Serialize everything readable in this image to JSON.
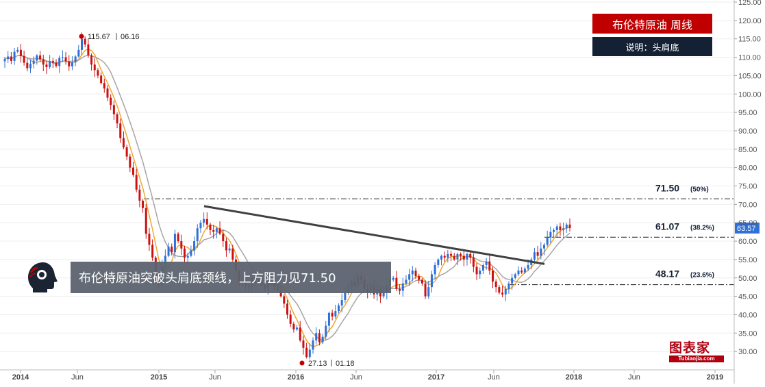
{
  "title": "布伦特原油 周线",
  "subtitle": "说明：头肩底",
  "banner_text": "布伦特原油突破头肩底颈线，上方阻力见71.50",
  "brand": {
    "name": "图表家",
    "site": "Tubiaojia.com"
  },
  "chart_data": {
    "type": "candlestick",
    "ylim": [
      25,
      125
    ],
    "y_ticks": [
      "30.00",
      "35.00",
      "40.00",
      "45.00",
      "50.00",
      "55.00",
      "60.00",
      "65.00",
      "70.00",
      "75.00",
      "80.00",
      "85.00",
      "90.00",
      "95.00",
      "100.00",
      "105.00",
      "110.00",
      "115.00",
      "120.00",
      "125.00"
    ],
    "x_labels": [
      "2014",
      "Jun",
      "2015",
      "Jun",
      "2016",
      "Jun",
      "2017",
      "Jun",
      "2018",
      "Jun",
      "2019"
    ],
    "last_price": "63.57",
    "high_annotation": {
      "price": "115.67",
      "date": "06.16"
    },
    "low_annotation": {
      "price": "27.13",
      "date": "01.18"
    },
    "fib_levels": [
      {
        "price": "71.50",
        "pct": "(50%)"
      },
      {
        "price": "61.07",
        "pct": "(38.2%)"
      },
      {
        "price": "48.17",
        "pct": "(23.6%)"
      }
    ],
    "neckline": {
      "start": 69.5,
      "end": 53.8
    },
    "closes": [
      109.5,
      110.2,
      109.0,
      111.5,
      112.0,
      110.3,
      108.5,
      107.0,
      108.2,
      109.1,
      110.5,
      109.4,
      108.0,
      107.3,
      109.0,
      108.5,
      107.6,
      109.8,
      110.0,
      108.9,
      107.5,
      108.6,
      110.2,
      112.0,
      115.0,
      113.5,
      110.5,
      108.0,
      106.5,
      105.0,
      103.0,
      101.5,
      99.0,
      97.0,
      94.5,
      92.0,
      88.0,
      85.5,
      83.0,
      80.0,
      78.0,
      74.0,
      71.0,
      69.0,
      62.0,
      59.0,
      55.5,
      50.0,
      48.0,
      53.0,
      56.0,
      58.5,
      57.0,
      62.0,
      60.0,
      58.0,
      55.5,
      56.0,
      57.5,
      60.0,
      63.5,
      65.0,
      66.0,
      64.5,
      63.0,
      62.5,
      63.5,
      62.0,
      60.0,
      57.5,
      58.0,
      55.0,
      52.0,
      49.0,
      49.5,
      48.0,
      47.5,
      50.0,
      48.5,
      49.0,
      48.0,
      47.2,
      48.5,
      49.0,
      47.5,
      46.5,
      45.0,
      43.0,
      40.0,
      37.5,
      36.0,
      36.5,
      33.0,
      31.0,
      28.5,
      30.5,
      33.0,
      35.0,
      32.5,
      34.0,
      37.0,
      40.5,
      39.5,
      41.0,
      42.5,
      44.0,
      46.0,
      47.5,
      49.0,
      48.0,
      50.5,
      49.5,
      47.0,
      46.0,
      47.5,
      45.5,
      47.0,
      45.0,
      46.0,
      48.0,
      49.5,
      50.0,
      47.0,
      46.5,
      48.5,
      49.5,
      51.0,
      52.0,
      50.5,
      49.5,
      48.5,
      45.0,
      47.5,
      51.0,
      53.5,
      55.0,
      56.0,
      55.5,
      56.5,
      56.0,
      55.0,
      56.5,
      56.0,
      55.0,
      56.5,
      55.5,
      53.0,
      51.0,
      52.0,
      53.5,
      54.5,
      52.0,
      49.0,
      47.5,
      46.0,
      45.5,
      47.0,
      48.5,
      50.0,
      51.0,
      52.0,
      51.5,
      52.5,
      53.5,
      55.0,
      57.0,
      56.0,
      58.0,
      59.0,
      61.0,
      62.5,
      63.0,
      64.0,
      63.0,
      63.5,
      64.5,
      63.57
    ],
    "series": [
      {
        "name": "",
        "color": "#f0a830"
      },
      {
        "name": "",
        "color": "#a8a4a4"
      }
    ]
  }
}
